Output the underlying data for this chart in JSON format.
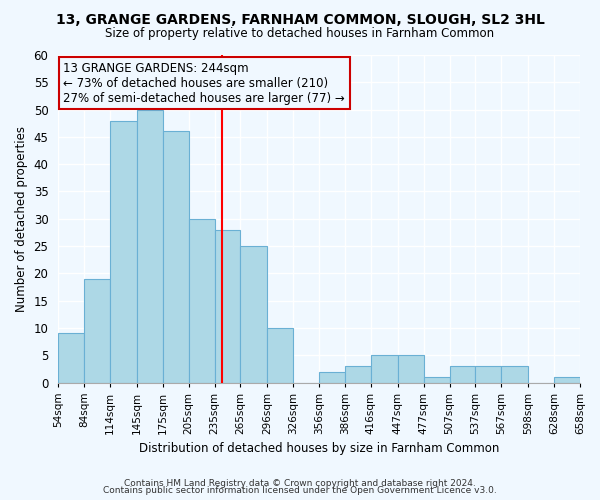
{
  "title_line1": "13, GRANGE GARDENS, FARNHAM COMMON, SLOUGH, SL2 3HL",
  "title_line2": "Size of property relative to detached houses in Farnham Common",
  "xlabel": "Distribution of detached houses by size in Farnham Common",
  "ylabel": "Number of detached properties",
  "bin_labels": [
    "54sqm",
    "84sqm",
    "114sqm",
    "145sqm",
    "175sqm",
    "205sqm",
    "235sqm",
    "265sqm",
    "296sqm",
    "326sqm",
    "356sqm",
    "386sqm",
    "416sqm",
    "447sqm",
    "477sqm",
    "507sqm",
    "537sqm",
    "567sqm",
    "598sqm",
    "628sqm",
    "658sqm"
  ],
  "bin_edges": [
    54,
    84,
    114,
    145,
    175,
    205,
    235,
    265,
    296,
    326,
    356,
    386,
    416,
    447,
    477,
    507,
    537,
    567,
    598,
    628,
    658
  ],
  "bar_heights": [
    9,
    19,
    48,
    50,
    46,
    30,
    28,
    25,
    10,
    0,
    2,
    3,
    5,
    5,
    1,
    3,
    3,
    3,
    0,
    1,
    0
  ],
  "bar_color": "#add8e6",
  "bar_edge_color": "#6ab0d4",
  "reference_line_x": 244,
  "reference_line_color": "red",
  "annotation_title": "13 GRANGE GARDENS: 244sqm",
  "annotation_line1": "← 73% of detached houses are smaller (210)",
  "annotation_line2": "27% of semi-detached houses are larger (77) →",
  "annotation_box_edge": "#cc0000",
  "ylim": [
    0,
    60
  ],
  "yticks": [
    0,
    5,
    10,
    15,
    20,
    25,
    30,
    35,
    40,
    45,
    50,
    55,
    60
  ],
  "footnote1": "Contains HM Land Registry data © Crown copyright and database right 2024.",
  "footnote2": "Contains public sector information licensed under the Open Government Licence v3.0.",
  "bg_color": "#f0f8ff",
  "grid_color": "#ffffff"
}
